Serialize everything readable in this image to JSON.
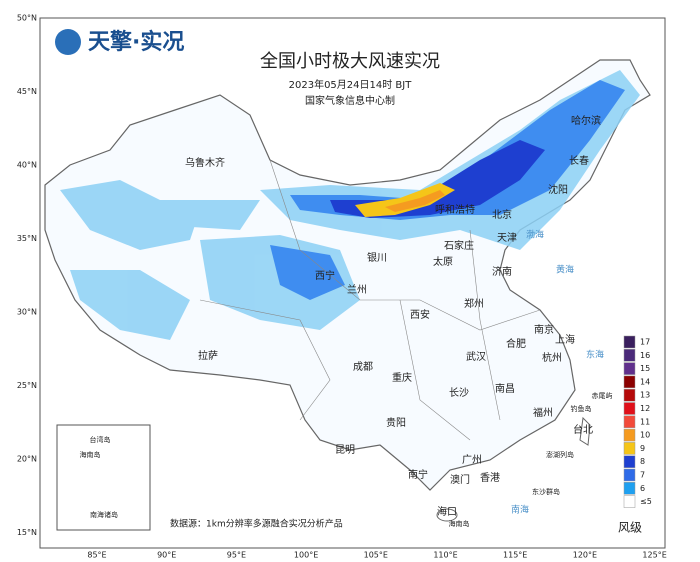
{
  "header": {
    "logo": "天擎·实况",
    "title": "全国小时极大风速实况",
    "subtitle": "2023年05月24日14时 BJT",
    "producer": "国家气象信息中心制"
  },
  "axes": {
    "lat": [
      "50°N",
      "45°N",
      "40°N",
      "35°N",
      "30°N",
      "25°N",
      "20°N",
      "15°N"
    ],
    "lon": [
      "85°E",
      "90°E",
      "95°E",
      "100°E",
      "105°E",
      "110°E",
      "115°E",
      "120°E",
      "125°E"
    ]
  },
  "cities": [
    "乌鲁木齐",
    "哈尔滨",
    "长春",
    "沈阳",
    "呼和浩特",
    "北京",
    "天津",
    "石家庄",
    "太原",
    "济南",
    "银川",
    "西宁",
    "兰州",
    "郑州",
    "西安",
    "合肥",
    "南京",
    "上海",
    "杭州",
    "武汉",
    "成都",
    "重庆",
    "长沙",
    "南昌",
    "福州",
    "台北",
    "拉萨",
    "贵阳",
    "昆明",
    "南宁",
    "广州",
    "香港",
    "澳门",
    "海口"
  ],
  "places": [
    "钓鱼岛",
    "赤尾屿",
    "澎湖列岛",
    "东沙群岛",
    "海南岛",
    "渤海",
    "黄海",
    "东海",
    "南海"
  ],
  "inset": [
    "台湾岛",
    "海南岛",
    "南海诸岛"
  ],
  "source": "数据源：1km分辨率多源融合实况分析产品",
  "legend": {
    "title": "风级",
    "items": [
      {
        "label": "17",
        "color": "#3a1f5e"
      },
      {
        "label": "16",
        "color": "#4b2a7a"
      },
      {
        "label": "15",
        "color": "#60308c"
      },
      {
        "label": "14",
        "color": "#8b0000"
      },
      {
        "label": "13",
        "color": "#b50a0a"
      },
      {
        "label": "12",
        "color": "#e0101a"
      },
      {
        "label": "11",
        "color": "#f24a3a"
      },
      {
        "label": "10",
        "color": "#f59b20"
      },
      {
        "label": "9",
        "color": "#f5c518"
      },
      {
        "label": "8",
        "color": "#1e3fd0"
      },
      {
        "label": "7",
        "color": "#2f6be8"
      },
      {
        "label": "6",
        "color": "#1fa0f0"
      },
      {
        "label": "≤5",
        "color": "#ffffff"
      }
    ]
  }
}
